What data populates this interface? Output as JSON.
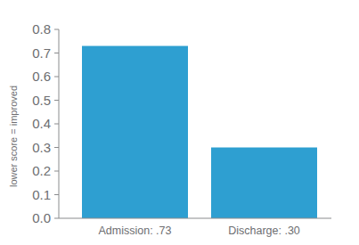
{
  "chart_data": {
    "type": "bar",
    "y_label": "lower score = improved",
    "categories": [
      "Admission: .73",
      "Discharge: .30"
    ],
    "values": [
      0.73,
      0.3
    ],
    "color": "#2e9fd1",
    "ylim": [
      0,
      0.8
    ],
    "yticks": [
      {
        "value": 0,
        "label": "0.0"
      },
      0.1,
      0.2,
      0.3,
      0.4,
      0.5,
      0.6,
      0.7,
      0.8
    ],
    "grid": false
  }
}
